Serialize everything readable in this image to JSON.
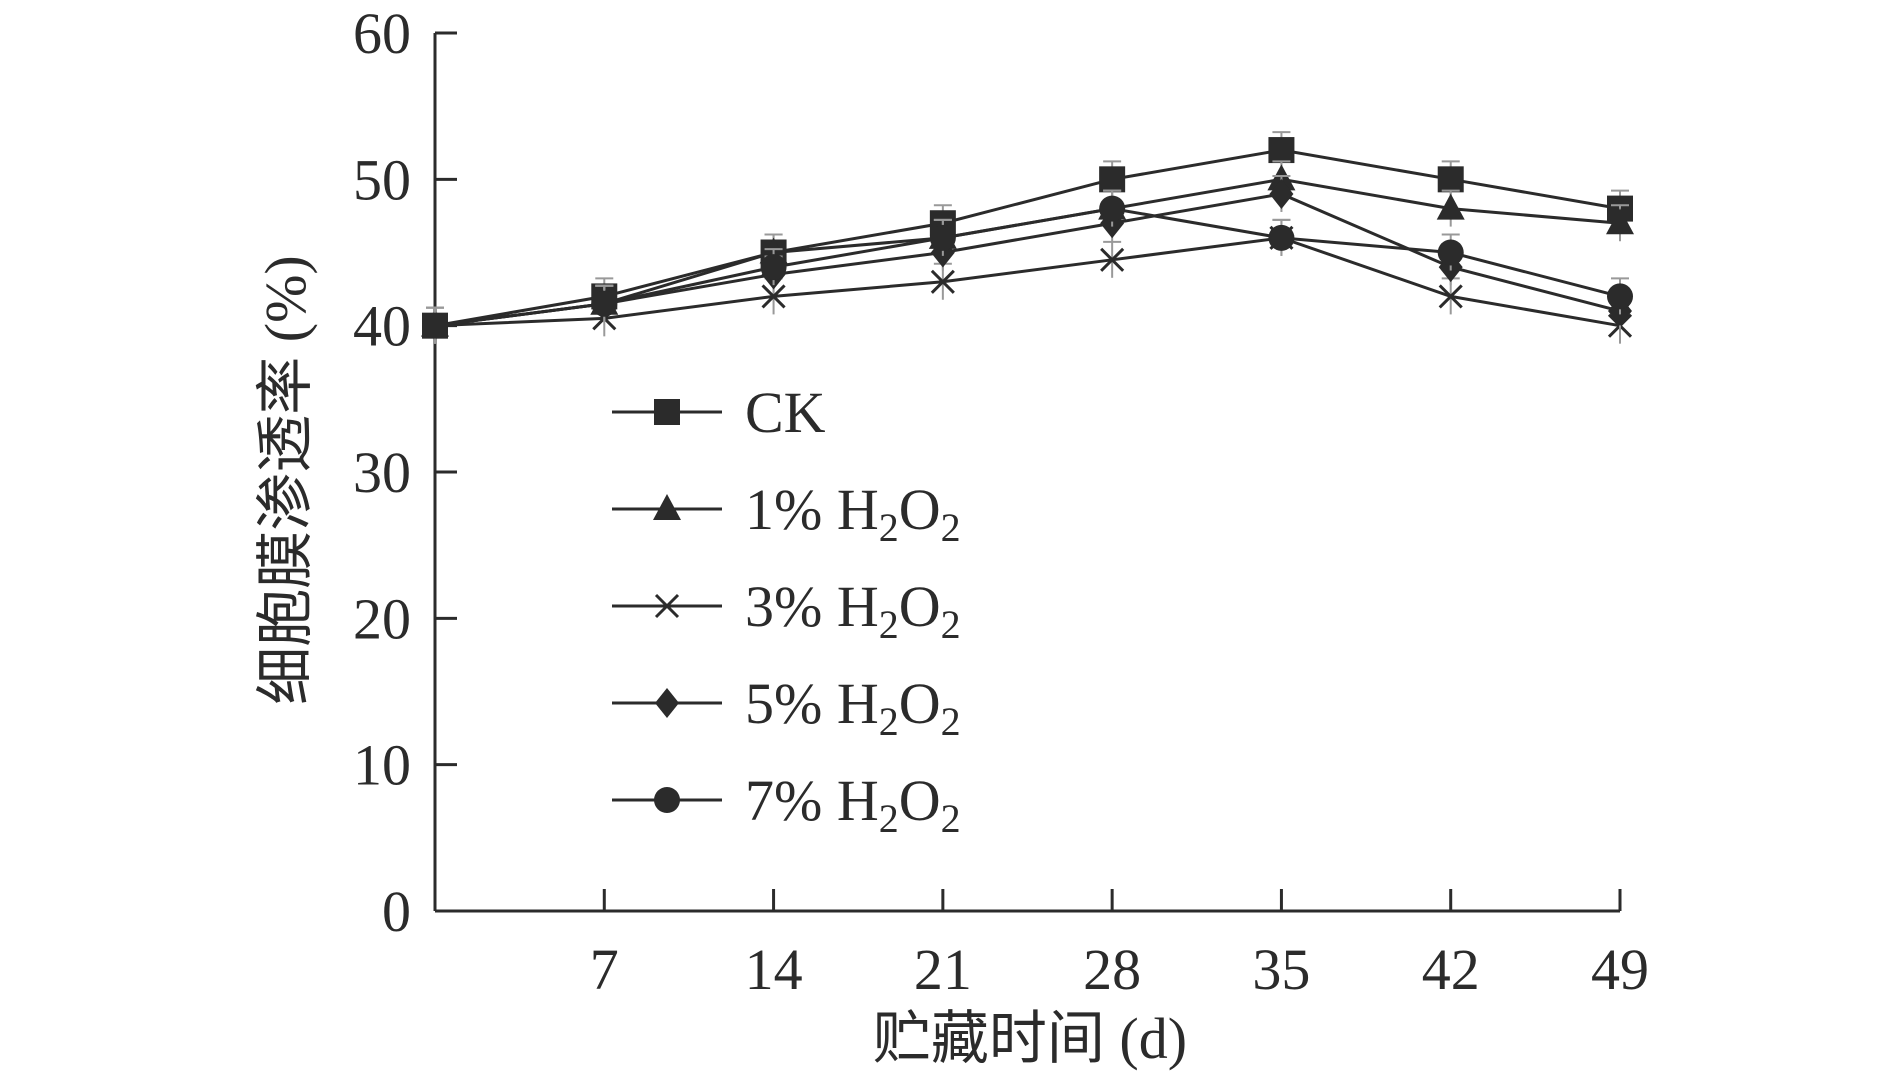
{
  "chart_data": {
    "type": "line",
    "xlabel": "贮藏时间 (d)",
    "ylabel": "细胞膜渗透率 (%)",
    "ylim": [
      0,
      60
    ],
    "yticks": [
      0,
      10,
      20,
      30,
      40,
      50,
      60
    ],
    "x": [
      0,
      7,
      14,
      21,
      28,
      35,
      42,
      49
    ],
    "xtick_labels": [
      "7",
      "14",
      "21",
      "28",
      "35",
      "42",
      "49"
    ],
    "grid": false,
    "legend_position": "center-left",
    "series": [
      {
        "name": "CK",
        "name_main": "CK",
        "name_sub": "",
        "name_tail": "",
        "marker": "square",
        "values": [
          40,
          42,
          45,
          47,
          50,
          52,
          50,
          48
        ]
      },
      {
        "name": "1% H2O2",
        "name_main": "1% H",
        "name_sub": "2",
        "name_tail": "O",
        "marker": "triangle",
        "values": [
          40,
          41.5,
          45,
          46,
          48,
          50,
          48,
          47
        ]
      },
      {
        "name": "3% H2O2",
        "name_main": "3% H",
        "name_sub": "2",
        "name_tail": "O",
        "marker": "cross",
        "values": [
          40,
          40.5,
          42,
          43,
          44.5,
          46,
          42,
          40
        ]
      },
      {
        "name": "5% H2O2",
        "name_main": "5% H",
        "name_sub": "2",
        "name_tail": "O",
        "marker": "diamond",
        "values": [
          40,
          41.5,
          43.5,
          45,
          47,
          49,
          44,
          41
        ]
      },
      {
        "name": "7% H2O2",
        "name_main": "7% H",
        "name_sub": "2",
        "name_tail": "O",
        "marker": "circle",
        "values": [
          40,
          41.5,
          44,
          46,
          48,
          46,
          45,
          42
        ]
      }
    ],
    "series_color": "#2b2b2b",
    "errorbar_color": "#999999"
  }
}
